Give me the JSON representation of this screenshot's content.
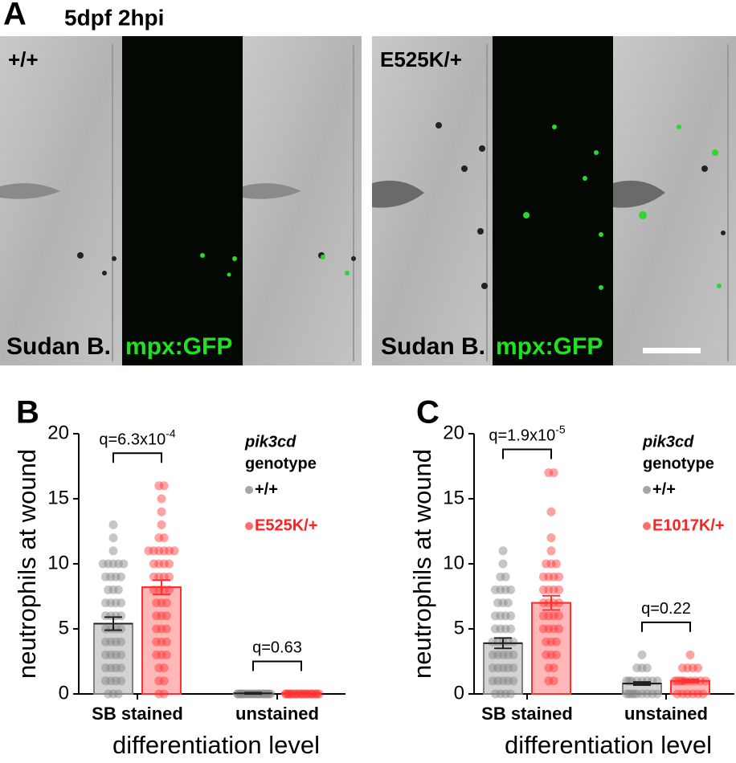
{
  "panel_a": {
    "label": "A",
    "title": "5dpf 2hpi",
    "panels": [
      {
        "genotype": "+/+",
        "left_label": "Sudan B.",
        "right_label": "mpx:GFP"
      },
      {
        "genotype": "E525K/+",
        "left_label": "Sudan B.",
        "right_label": "mpx:GFP"
      }
    ]
  },
  "chart_data": [
    {
      "type": "bar",
      "panel_label": "B",
      "ylabel": "neutrophils at wound",
      "xlabel": "differentiation level",
      "categories": [
        "SB stained",
        "unstained"
      ],
      "legend_gene": "pik3cd",
      "legend_title": "genotype",
      "ylim": [
        0,
        20
      ],
      "yticks": [
        0,
        5,
        10,
        15,
        20
      ],
      "series": [
        {
          "name": "+/+",
          "color": "#808080",
          "text_color": "#000000",
          "values": [
            5.4,
            0.05
          ],
          "errors": [
            0.5,
            0.05
          ],
          "points": [
            [
              13,
              12,
              11,
              10,
              10,
              10,
              10,
              10,
              9,
              9,
              9,
              9,
              8,
              8,
              8,
              7,
              7,
              7,
              7,
              6,
              6,
              6,
              6,
              5,
              5,
              5,
              5,
              4,
              4,
              4,
              4,
              3,
              3,
              3,
              3,
              2,
              2,
              2,
              2,
              1,
              1,
              1,
              1,
              0,
              0,
              0
            ],
            [
              0,
              0,
              0,
              0,
              0,
              0,
              0,
              0,
              0,
              0,
              0,
              0,
              0,
              0,
              0,
              0,
              0,
              0,
              0,
              0,
              0,
              0
            ]
          ]
        },
        {
          "name": "E525K/+",
          "color": "#ff3030",
          "text_color": "#ff2020",
          "values": [
            8.2,
            0.05
          ],
          "errors": [
            0.55,
            0.05
          ],
          "points": [
            [
              16,
              16,
              15,
              14,
              13,
              12,
              12,
              11,
              11,
              11,
              11,
              11,
              11,
              10,
              10,
              10,
              10,
              9,
              9,
              9,
              9,
              8,
              8,
              8,
              8,
              7,
              7,
              7,
              6,
              6,
              6,
              5,
              5,
              5,
              4,
              4,
              4,
              3,
              3,
              3,
              2,
              2,
              1,
              1,
              0,
              0
            ],
            [
              0,
              0,
              0,
              0,
              0,
              0,
              0,
              0,
              0,
              0,
              0,
              0,
              0,
              0,
              0,
              0,
              0,
              0,
              0,
              0,
              0,
              0
            ]
          ]
        }
      ],
      "comparisons": [
        {
          "text": "q=6.3x10",
          "exponent": "-4"
        },
        {
          "text": "q=0.63"
        }
      ]
    },
    {
      "type": "bar",
      "panel_label": "C",
      "ylabel": "neutrophils at wound",
      "xlabel": "differentiation level",
      "categories": [
        "SB stained",
        "unstained"
      ],
      "legend_gene": "pik3cd",
      "legend_title": "genotype",
      "ylim": [
        0,
        20
      ],
      "yticks": [
        0,
        5,
        10,
        15,
        20
      ],
      "series": [
        {
          "name": "+/+",
          "color": "#808080",
          "text_color": "#000000",
          "values": [
            3.9,
            0.8
          ],
          "errors": [
            0.4,
            0.12
          ],
          "points": [
            [
              11,
              10,
              9,
              9,
              8,
              8,
              8,
              8,
              7,
              7,
              7,
              6,
              6,
              6,
              6,
              5,
              5,
              5,
              5,
              4,
              4,
              4,
              4,
              4,
              3,
              3,
              3,
              3,
              3,
              2,
              2,
              2,
              2,
              2,
              1,
              1,
              1,
              1,
              1,
              0,
              0,
              0,
              0
            ],
            [
              3,
              2,
              2,
              2,
              1,
              1,
              1,
              1,
              1,
              1,
              1,
              1,
              0,
              0,
              0,
              0,
              0,
              0,
              0,
              0,
              0
            ]
          ]
        },
        {
          "name": "E1017K/+",
          "color": "#ff3030",
          "text_color": "#ff2020",
          "values": [
            7.0,
            1.0
          ],
          "errors": [
            0.55,
            0.12
          ],
          "points": [
            [
              17,
              17,
              14,
              12,
              11,
              10,
              10,
              10,
              9,
              9,
              9,
              9,
              8,
              8,
              8,
              8,
              7,
              7,
              7,
              7,
              6,
              6,
              6,
              6,
              5,
              5,
              5,
              5,
              4,
              4,
              4,
              3,
              3,
              3,
              2,
              2,
              1,
              1
            ],
            [
              3,
              2,
              2,
              2,
              2,
              1,
              1,
              1,
              1,
              1,
              1,
              1,
              1,
              1,
              0,
              0,
              0,
              0,
              0,
              0
            ]
          ]
        }
      ],
      "comparisons": [
        {
          "text": "q=1.9x10",
          "exponent": "-5"
        },
        {
          "text": "q=0.22"
        }
      ]
    }
  ]
}
